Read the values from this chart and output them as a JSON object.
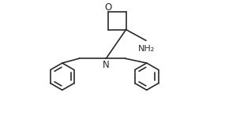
{
  "bg_color": "#ffffff",
  "line_color": "#2a2a2a",
  "line_width": 1.2,
  "font_size_atom": 8.5,
  "font_size_NH2": 8.0,
  "figsize": [
    2.85,
    1.46
  ],
  "dpi": 100,
  "xlim": [
    -1.1,
    1.1
  ],
  "ylim": [
    -1.05,
    0.72
  ]
}
